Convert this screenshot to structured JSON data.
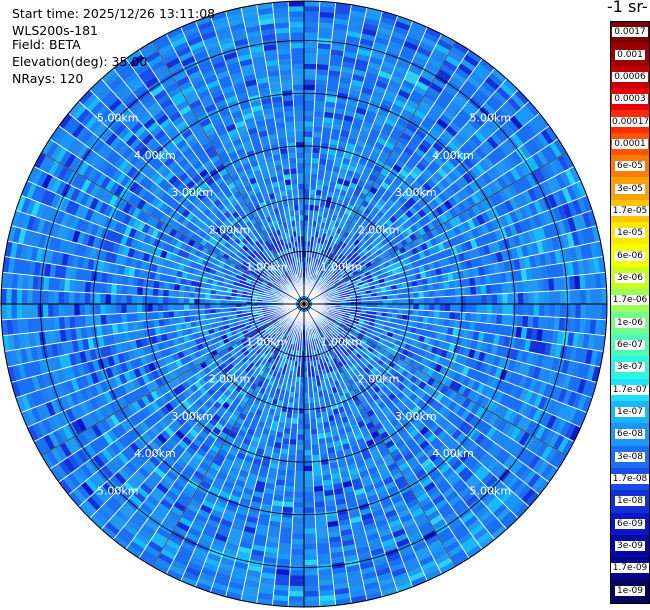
{
  "header": {
    "start_time": "Start time: 2025/12/26 13:11:08",
    "instrument": "WLS200s-181",
    "field": "Field: BETA",
    "elevation": "Elevation(deg): 35.00",
    "nrays": "NRays: 120"
  },
  "colorbar": {
    "title": "-1 sr-",
    "labels": [
      "0.0017",
      "0.001",
      "0.0006",
      "0.0003",
      "0.00017",
      "0.0001",
      "6e-05",
      "3e-05",
      "1.7e-05",
      "1e-05",
      "6e-06",
      "3e-06",
      "1.7e-06",
      "1e-06",
      "6e-07",
      "3e-07",
      "1.7e-07",
      "1e-07",
      "6e-08",
      "3e-08",
      "1.7e-08",
      "1e-08",
      "6e-09",
      "3e-09",
      "1.7e-09",
      "1e-09"
    ],
    "colors": [
      "#7a0000",
      "#9a0000",
      "#c40000",
      "#e80000",
      "#ff2a00",
      "#ff5500",
      "#ff7b00",
      "#ffa000",
      "#ffc400",
      "#ffe800",
      "#f5ff00",
      "#c8ff1e",
      "#9cff5a",
      "#72ff8a",
      "#4dffb8",
      "#2cf6e0",
      "#1ee0ff",
      "#18b8ff",
      "#1a96ff",
      "#1a70f5",
      "#1a4ee8",
      "#1230d6",
      "#0b16c8",
      "#0707a8",
      "#050585",
      "#04045f"
    ]
  },
  "chart_data": {
    "type": "polar-ppi",
    "field": "BETA",
    "nrays": 120,
    "elevation_deg": 35.0,
    "range_ring_labels": [
      "1.00km",
      "2.00km",
      "3.00km",
      "4.00km",
      "5.00km"
    ],
    "range_rings_km": [
      1,
      2,
      3,
      4,
      5
    ],
    "value_range": [
      1e-09,
      0.0017
    ],
    "colormap": "jet-like",
    "dominant_value_band": "3e-08 to 1e-07"
  }
}
